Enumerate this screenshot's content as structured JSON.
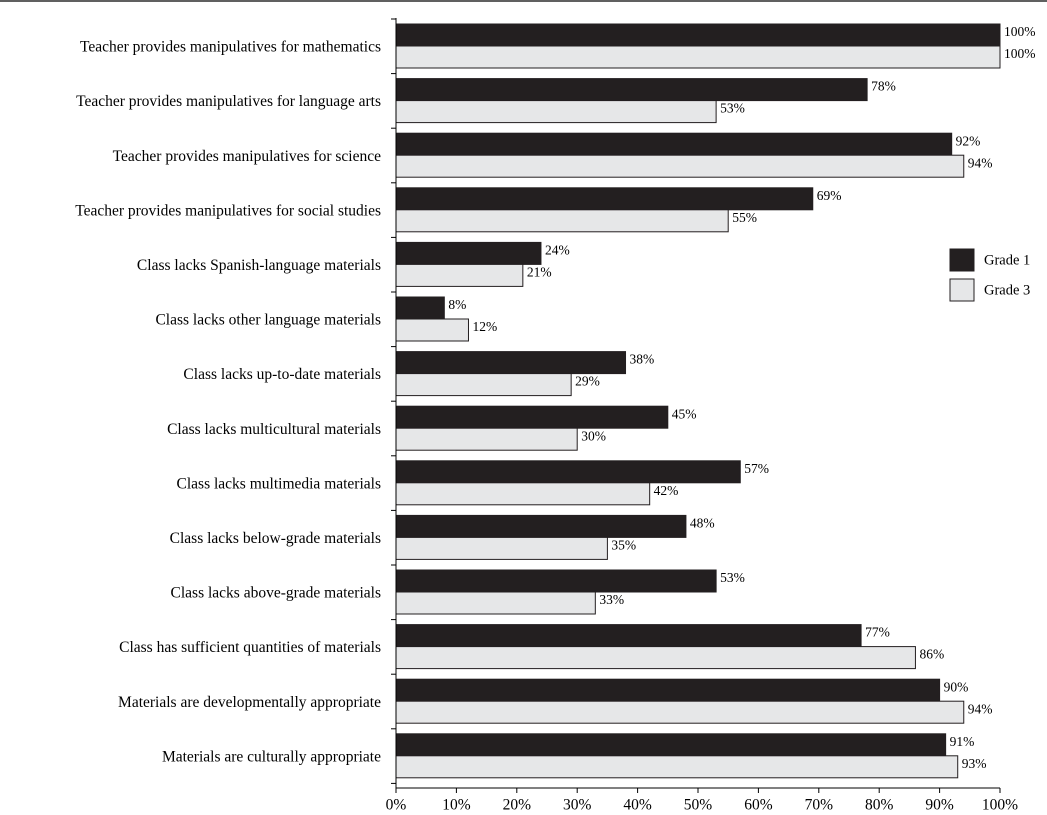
{
  "chart_data": {
    "type": "bar",
    "orientation": "horizontal",
    "categories": [
      "Teacher provides manipulatives for mathematics",
      "Teacher provides manipulatives for language arts",
      "Teacher provides manipulatives for science",
      "Teacher provides manipulatives for social studies",
      "Class lacks Spanish-language materials",
      "Class lacks other language materials",
      "Class lacks up-to-date materials",
      "Class lacks multicultural materials",
      "Class lacks multimedia materials",
      "Class lacks below-grade materials",
      "Class lacks above-grade materials",
      "Class has sufficient quantities of materials",
      "Materials are developmentally appropriate",
      "Materials are culturally appropriate"
    ],
    "series": [
      {
        "name": "Grade 1",
        "color": "#231f20",
        "values": [
          100,
          78,
          92,
          69,
          24,
          8,
          38,
          45,
          57,
          48,
          53,
          77,
          90,
          91
        ],
        "labels": [
          "100%",
          "78%",
          "92%",
          "69%",
          "24%",
          "8%",
          "38%",
          "45%",
          "57%",
          "48%",
          "53%",
          "77%",
          "90%",
          "91%"
        ]
      },
      {
        "name": "Grade 3",
        "color": "#e6e7e8",
        "values": [
          100,
          53,
          94,
          55,
          21,
          12,
          29,
          30,
          42,
          35,
          33,
          86,
          94,
          93
        ],
        "labels": [
          "100%",
          "53%",
          "94%",
          "55%",
          "21%",
          "12%",
          "29%",
          "30%",
          "42%",
          "35%",
          "33%",
          "86%",
          "94%",
          "93%"
        ]
      }
    ],
    "xlim": [
      0,
      100
    ],
    "x_ticks": [
      0,
      10,
      20,
      30,
      40,
      50,
      60,
      70,
      80,
      90,
      100
    ],
    "x_tick_labels": [
      "0%",
      "10%",
      "20%",
      "30%",
      "40%",
      "50%",
      "60%",
      "70%",
      "80%",
      "90%",
      "100%"
    ],
    "grid": false,
    "legend_position": "right"
  }
}
